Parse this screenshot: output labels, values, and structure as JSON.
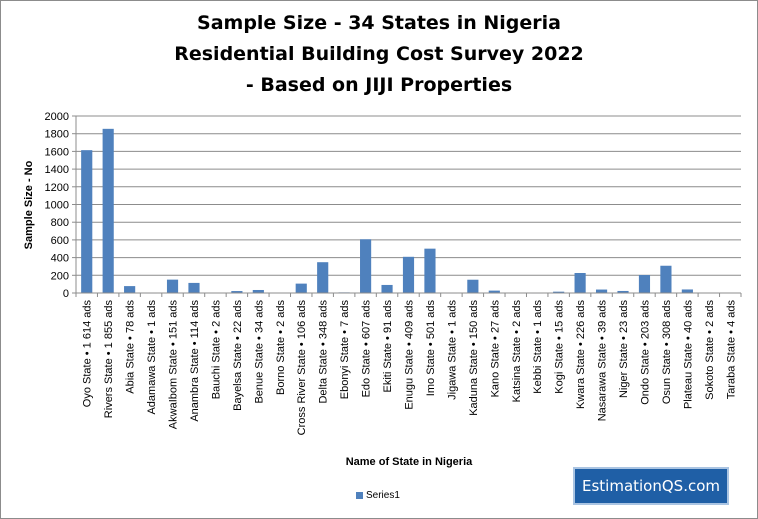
{
  "chart_data": {
    "type": "bar",
    "title_lines": [
      "Sample Size - 34 States in Nigeria",
      "Residential Building Cost Survey 2022",
      "- Based on JIJI Properties"
    ],
    "xlabel": "Name of State in Nigeria",
    "ylabel": "Sample Size - No",
    "ylim": [
      0,
      2000
    ],
    "yticks": [
      0,
      200,
      400,
      600,
      800,
      1000,
      1200,
      1400,
      1600,
      1800,
      2000
    ],
    "grid": true,
    "legend_position": "bottom",
    "bar_color": "#4f81bd",
    "categories": [
      "Oyo State • 1 614 ads",
      "Rivers State • 1 855 ads",
      "Abia State • 78 ads",
      "Adamawa State • 1 ads",
      "AkwaIbom State • 151 ads",
      "Anambra State • 114 ads",
      "Bauchi State • 2 ads",
      "Bayelsa State • 22 ads",
      "Benue State • 34 ads",
      "Borno State • 2 ads",
      "Cross River State • 106 ads",
      "Delta State • 348 ads",
      "Ebonyi State • 7 ads",
      "Edo State • 607 ads",
      "Ekiti State • 91 ads",
      "Enugu State • 409 ads",
      "Imo State • 501 ads",
      "Jigawa State • 1 ads",
      "Kaduna State • 150 ads",
      "Kano State • 27 ads",
      "Katsina State • 2 ads",
      "Kebbi State • 1 ads",
      "Kogi State • 15 ads",
      "Kwara State • 226 ads",
      "Nasarawa State • 39 ads",
      "Niger State • 23 ads",
      "Ondo State • 203 ads",
      "Osun State • 308 ads",
      "Plateau State • 40 ads",
      "Sokoto State • 2 ads",
      "Taraba State • 4 ads"
    ],
    "series": [
      {
        "name": "Series1",
        "values": [
          1614,
          1855,
          78,
          1,
          151,
          114,
          2,
          22,
          34,
          2,
          106,
          348,
          7,
          607,
          91,
          409,
          501,
          1,
          150,
          27,
          2,
          1,
          15,
          226,
          39,
          23,
          203,
          308,
          40,
          2,
          4
        ]
      }
    ]
  },
  "brand": {
    "label": "EstimationQS.com"
  }
}
